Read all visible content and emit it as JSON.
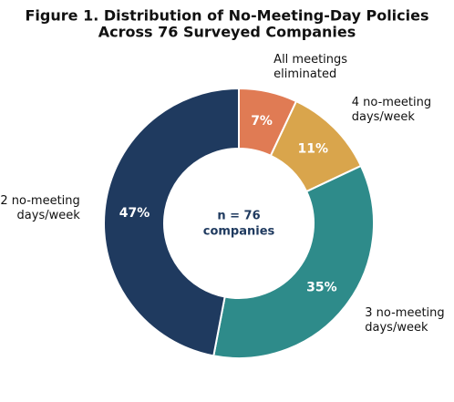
{
  "chart_data": {
    "type": "donut",
    "title": [
      "Figure 1. Distribution of No-Meeting-Day Policies",
      "Across 76 Surveyed Companies"
    ],
    "center_label": [
      "n = 76",
      "companies"
    ],
    "categories": [
      "All meetings eliminated",
      "4 no-meeting days/week",
      "3 no-meeting days/week",
      "2 no-meeting days/week"
    ],
    "values": [
      7,
      11,
      35,
      47
    ],
    "value_labels": [
      "7%",
      "11%",
      "35%",
      "47%"
    ],
    "colors": [
      "#e07b54",
      "#d9a54c",
      "#2e8b8a",
      "#1f3a5f"
    ]
  }
}
